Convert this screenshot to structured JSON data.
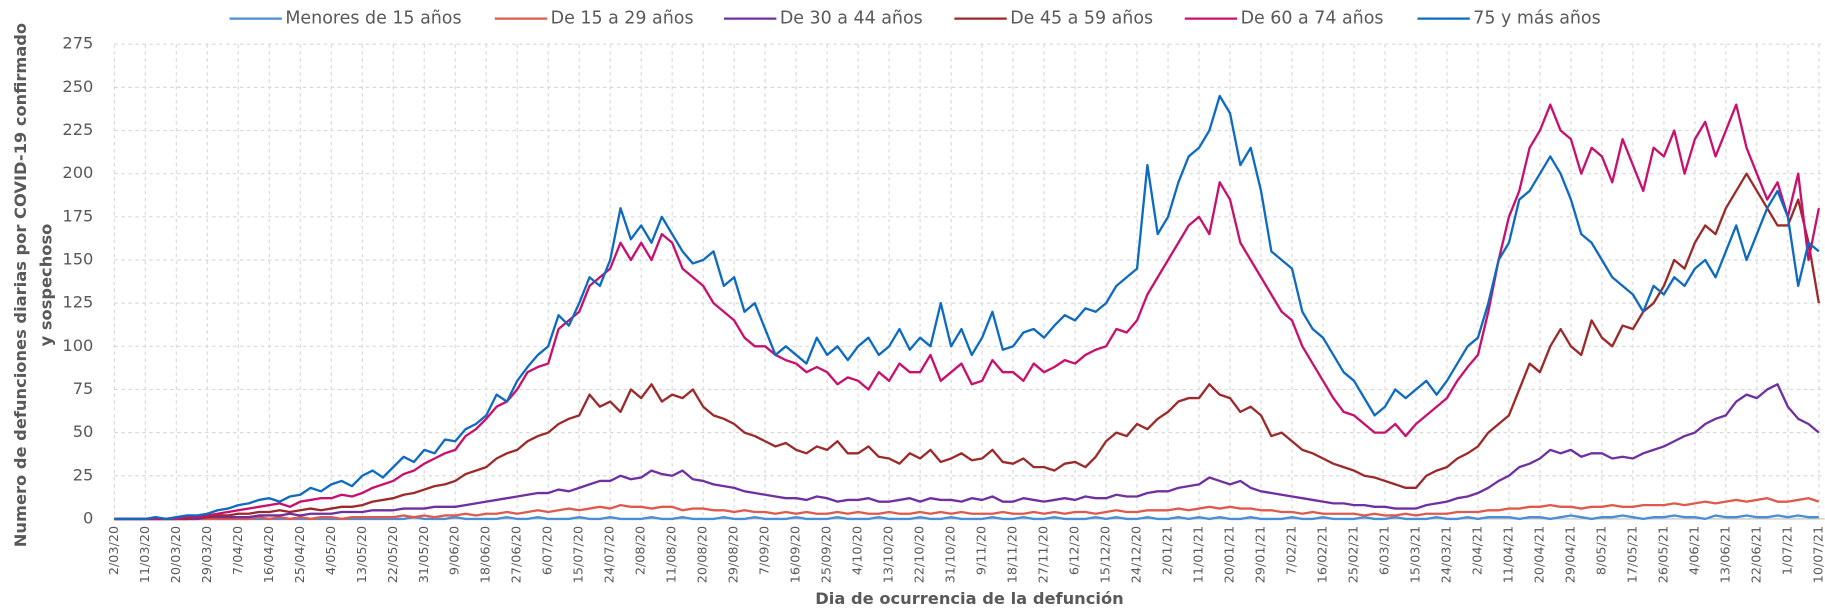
{
  "chart_data": {
    "type": "line",
    "y_label": [
      "Numero de defunciones diarias por COVID-19 confirmado",
      "y sospechoso"
    ],
    "x_label": "Dia de ocurrencia de la defunción",
    "ylim": [
      0,
      275
    ],
    "yticks": [
      0,
      25,
      50,
      75,
      100,
      125,
      150,
      175,
      200,
      225,
      250,
      275
    ],
    "grid": true,
    "legend": "top",
    "categories": [
      "2/03/20",
      null,
      null,
      "11/03/20",
      null,
      null,
      "20/03/20",
      null,
      null,
      "29/03/20",
      null,
      null,
      "7/04/20",
      null,
      null,
      "16/04/20",
      null,
      null,
      "25/04/20",
      null,
      null,
      "4/05/20",
      null,
      null,
      "13/05/20",
      null,
      null,
      "22/05/20",
      null,
      null,
      "31/05/20",
      null,
      null,
      "9/06/20",
      null,
      null,
      "18/06/20",
      null,
      null,
      "27/06/20",
      null,
      null,
      "6/07/20",
      null,
      null,
      "15/07/20",
      null,
      null,
      "24/07/20",
      null,
      null,
      "2/08/20",
      null,
      null,
      "11/08/20",
      null,
      null,
      "20/08/20",
      null,
      null,
      "29/08/20",
      null,
      null,
      "7/09/20",
      null,
      null,
      "16/09/20",
      null,
      null,
      "25/09/20",
      null,
      null,
      "4/10/20",
      null,
      null,
      "13/10/20",
      null,
      null,
      "22/10/20",
      null,
      null,
      "31/10/20",
      null,
      null,
      "9/11/20",
      null,
      null,
      "18/11/20",
      null,
      null,
      "27/11/20",
      null,
      null,
      "6/12/20",
      null,
      null,
      "15/12/20",
      null,
      null,
      "24/12/20",
      null,
      null,
      "2/01/21",
      null,
      null,
      "11/01/21",
      null,
      null,
      "20/01/21",
      null,
      null,
      "29/01/21",
      null,
      null,
      "7/02/21",
      null,
      null,
      "16/02/21",
      null,
      null,
      "25/02/21",
      null,
      null,
      "6/03/21",
      null,
      null,
      "15/03/21",
      null,
      null,
      "24/03/21",
      null,
      null,
      "2/04/21",
      null,
      null,
      "11/04/21",
      null,
      null,
      "20/04/21",
      null,
      null,
      "29/04/21",
      null,
      null,
      "8/05/21",
      null,
      null,
      "17/05/21",
      null,
      null,
      "26/05/21",
      null,
      null,
      "4/06/21",
      null,
      null,
      "13/06/21",
      null,
      null,
      "22/06/21",
      null,
      null,
      "1/07/21",
      null,
      null,
      "10/07/21"
    ],
    "series": [
      {
        "name": "Menores de 15 años",
        "color": "#4a8fd6",
        "values": [
          0,
          0,
          0,
          0,
          0,
          0,
          0,
          0,
          0,
          0,
          0,
          0,
          0,
          0,
          0,
          0,
          0,
          0,
          0,
          0,
          0,
          0,
          0,
          0,
          0,
          0,
          0,
          0,
          0,
          1,
          0,
          0,
          0,
          1,
          0,
          0,
          0,
          0,
          1,
          0,
          0,
          1,
          0,
          0,
          0,
          1,
          0,
          0,
          1,
          0,
          0,
          0,
          1,
          0,
          0,
          1,
          0,
          0,
          0,
          1,
          0,
          0,
          1,
          0,
          0,
          0,
          1,
          0,
          0,
          0,
          1,
          0,
          0,
          0,
          1,
          0,
          0,
          0,
          1,
          0,
          0,
          1,
          0,
          0,
          0,
          1,
          0,
          0,
          1,
          0,
          0,
          1,
          0,
          0,
          0,
          1,
          0,
          1,
          0,
          0,
          1,
          0,
          0,
          1,
          0,
          1,
          0,
          1,
          0,
          0,
          1,
          0,
          0,
          0,
          1,
          0,
          0,
          1,
          0,
          0,
          0,
          1,
          0,
          0,
          1,
          0,
          0,
          0,
          1,
          0,
          0,
          1,
          0,
          1,
          1,
          1,
          0,
          1,
          1,
          0,
          1,
          2,
          1,
          0,
          1,
          1,
          2,
          1,
          0,
          1,
          1,
          2,
          1,
          1,
          0,
          2,
          1,
          1,
          2,
          1,
          1,
          2,
          1,
          2,
          1,
          1
        ]
      },
      {
        "name": "De 15 a 29 años",
        "color": "#df5a4e",
        "values": [
          0,
          0,
          0,
          0,
          0,
          0,
          0,
          0,
          0,
          0,
          0,
          0,
          0,
          0,
          1,
          0,
          1,
          0,
          1,
          0,
          1,
          1,
          0,
          1,
          1,
          1,
          1,
          1,
          2,
          1,
          2,
          1,
          2,
          2,
          3,
          2,
          3,
          3,
          4,
          3,
          4,
          5,
          4,
          5,
          6,
          5,
          6,
          7,
          6,
          8,
          7,
          7,
          6,
          7,
          7,
          5,
          6,
          6,
          5,
          5,
          4,
          5,
          4,
          4,
          3,
          4,
          3,
          4,
          3,
          3,
          4,
          3,
          4,
          3,
          3,
          4,
          3,
          3,
          4,
          3,
          4,
          3,
          4,
          3,
          3,
          3,
          4,
          3,
          3,
          4,
          3,
          4,
          3,
          4,
          4,
          3,
          4,
          5,
          4,
          4,
          5,
          5,
          5,
          6,
          5,
          6,
          7,
          6,
          7,
          6,
          6,
          5,
          5,
          4,
          4,
          3,
          4,
          3,
          3,
          3,
          3,
          2,
          3,
          2,
          2,
          3,
          2,
          3,
          3,
          3,
          4,
          4,
          4,
          5,
          5,
          6,
          6,
          7,
          7,
          8,
          7,
          7,
          6,
          7,
          7,
          8,
          7,
          7,
          8,
          8,
          8,
          9,
          8,
          9,
          10,
          9,
          10,
          11,
          10,
          11,
          12,
          10,
          10,
          11,
          12,
          10
        ]
      },
      {
        "name": "De 30 a 44 años",
        "color": "#7030a0",
        "values": [
          0,
          0,
          0,
          0,
          0,
          0,
          0,
          0,
          0,
          1,
          1,
          1,
          1,
          1,
          2,
          2,
          2,
          3,
          2,
          3,
          3,
          3,
          4,
          4,
          4,
          5,
          5,
          5,
          6,
          6,
          6,
          7,
          7,
          7,
          8,
          9,
          10,
          11,
          12,
          13,
          14,
          15,
          15,
          17,
          16,
          18,
          20,
          22,
          22,
          25,
          23,
          24,
          28,
          26,
          25,
          28,
          23,
          22,
          20,
          19,
          18,
          16,
          15,
          14,
          13,
          12,
          12,
          11,
          13,
          12,
          10,
          11,
          11,
          12,
          10,
          10,
          11,
          12,
          10,
          12,
          11,
          11,
          10,
          12,
          11,
          13,
          10,
          10,
          12,
          11,
          10,
          11,
          12,
          11,
          13,
          12,
          12,
          14,
          13,
          13,
          15,
          16,
          16,
          18,
          19,
          20,
          24,
          22,
          20,
          22,
          18,
          16,
          15,
          14,
          13,
          12,
          11,
          10,
          9,
          9,
          8,
          8,
          7,
          7,
          6,
          6,
          6,
          8,
          9,
          10,
          12,
          13,
          15,
          18,
          22,
          25,
          30,
          32,
          35,
          40,
          38,
          40,
          36,
          38,
          38,
          35,
          36,
          35,
          38,
          40,
          42,
          45,
          48,
          50,
          55,
          58,
          60,
          68,
          72,
          70,
          75,
          78,
          65,
          58,
          55,
          50
        ]
      },
      {
        "name": "De 45 a 59 años",
        "color": "#9c2a2a",
        "values": [
          0,
          0,
          0,
          0,
          0,
          0,
          0,
          0,
          1,
          1,
          2,
          2,
          3,
          3,
          4,
          4,
          5,
          4,
          5,
          6,
          5,
          6,
          7,
          7,
          8,
          10,
          11,
          12,
          14,
          15,
          17,
          19,
          20,
          22,
          26,
          28,
          30,
          35,
          38,
          40,
          45,
          48,
          50,
          55,
          58,
          60,
          72,
          65,
          68,
          62,
          75,
          70,
          78,
          68,
          72,
          70,
          75,
          65,
          60,
          58,
          55,
          50,
          48,
          45,
          42,
          44,
          40,
          38,
          42,
          40,
          45,
          38,
          38,
          42,
          36,
          35,
          32,
          38,
          35,
          40,
          33,
          35,
          38,
          34,
          35,
          40,
          33,
          32,
          35,
          30,
          30,
          28,
          32,
          33,
          30,
          36,
          45,
          50,
          48,
          55,
          52,
          58,
          62,
          68,
          70,
          70,
          78,
          72,
          70,
          62,
          65,
          60,
          48,
          50,
          45,
          40,
          38,
          35,
          32,
          30,
          28,
          25,
          24,
          22,
          20,
          18,
          18,
          25,
          28,
          30,
          35,
          38,
          42,
          50,
          55,
          60,
          75,
          90,
          85,
          100,
          110,
          100,
          95,
          115,
          105,
          100,
          112,
          110,
          120,
          125,
          135,
          150,
          145,
          160,
          170,
          165,
          180,
          190,
          200,
          190,
          180,
          170,
          170,
          185,
          160,
          125
        ]
      },
      {
        "name": "De 60 a 74 años",
        "color": "#c8106e",
        "values": [
          0,
          0,
          0,
          0,
          0,
          0,
          0,
          1,
          1,
          2,
          3,
          4,
          5,
          6,
          7,
          8,
          9,
          7,
          10,
          11,
          12,
          12,
          14,
          13,
          15,
          18,
          20,
          22,
          26,
          28,
          32,
          35,
          38,
          40,
          48,
          52,
          58,
          65,
          68,
          75,
          85,
          88,
          90,
          110,
          115,
          120,
          135,
          140,
          145,
          160,
          150,
          160,
          150,
          165,
          160,
          145,
          140,
          135,
          125,
          120,
          115,
          105,
          100,
          100,
          95,
          92,
          90,
          85,
          88,
          85,
          78,
          82,
          80,
          75,
          85,
          80,
          90,
          85,
          85,
          95,
          80,
          85,
          90,
          78,
          80,
          92,
          85,
          85,
          80,
          90,
          85,
          88,
          92,
          90,
          95,
          98,
          100,
          110,
          108,
          115,
          130,
          140,
          150,
          160,
          170,
          175,
          165,
          195,
          185,
          160,
          150,
          140,
          130,
          120,
          115,
          100,
          90,
          80,
          70,
          62,
          60,
          55,
          50,
          50,
          55,
          48,
          55,
          60,
          65,
          70,
          80,
          88,
          95,
          120,
          150,
          175,
          190,
          215,
          225,
          240,
          225,
          220,
          200,
          215,
          210,
          195,
          220,
          205,
          190,
          215,
          210,
          225,
          200,
          220,
          230,
          210,
          225,
          240,
          215,
          200,
          185,
          195,
          175,
          200,
          150,
          180
        ]
      },
      {
        "name": "75 y más años",
        "color": "#0e6bbf",
        "values": [
          0,
          0,
          0,
          0,
          1,
          0,
          1,
          2,
          2,
          3,
          5,
          6,
          8,
          9,
          11,
          12,
          10,
          13,
          14,
          18,
          16,
          20,
          22,
          19,
          25,
          28,
          24,
          30,
          36,
          33,
          40,
          38,
          46,
          45,
          52,
          55,
          60,
          72,
          68,
          80,
          88,
          95,
          100,
          118,
          112,
          125,
          140,
          135,
          150,
          180,
          162,
          170,
          160,
          175,
          165,
          155,
          148,
          150,
          155,
          135,
          140,
          120,
          125,
          110,
          95,
          100,
          95,
          90,
          105,
          95,
          100,
          92,
          100,
          105,
          95,
          100,
          110,
          98,
          105,
          100,
          125,
          100,
          110,
          95,
          105,
          120,
          98,
          100,
          108,
          110,
          105,
          112,
          118,
          115,
          122,
          120,
          125,
          135,
          140,
          145,
          205,
          165,
          175,
          195,
          210,
          215,
          225,
          245,
          235,
          205,
          215,
          190,
          155,
          150,
          145,
          120,
          110,
          105,
          95,
          85,
          80,
          70,
          60,
          65,
          75,
          70,
          75,
          80,
          72,
          80,
          90,
          100,
          105,
          125,
          150,
          160,
          185,
          190,
          200,
          210,
          200,
          185,
          165,
          160,
          150,
          140,
          135,
          130,
          120,
          135,
          130,
          140,
          135,
          145,
          150,
          140,
          155,
          170,
          150,
          165,
          180,
          190,
          175,
          135,
          160,
          155
        ]
      }
    ]
  }
}
